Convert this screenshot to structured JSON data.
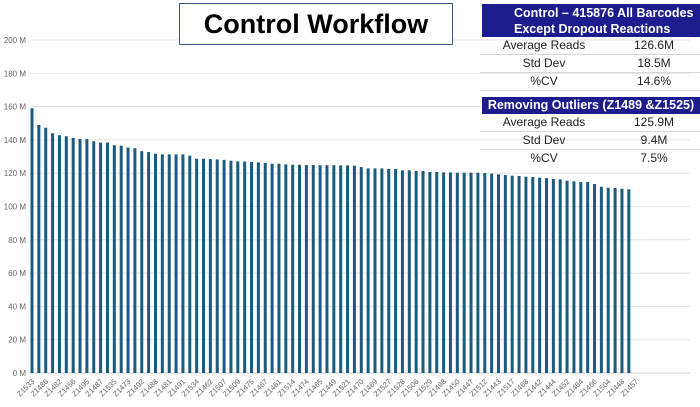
{
  "title": "Control Workflow",
  "stats_table": {
    "section1_header": [
      "Control  – 415876 All Barcodes",
      "Except Dropout Reactions"
    ],
    "section1_rows": [
      {
        "label": "Average Reads",
        "value": "126.6M"
      },
      {
        "label": "Std Dev",
        "value": "18.5M"
      },
      {
        "label": "%CV",
        "value": "14.6%"
      }
    ],
    "section2_header": "Removing Outliers (Z1489 &Z1525)",
    "section2_rows": [
      {
        "label": "Average Reads",
        "value": "125.9M"
      },
      {
        "label": "Std Dev",
        "value": "9.4M"
      },
      {
        "label": "%CV",
        "value": "7.5%"
      }
    ],
    "header_color": "#1c1c8f"
  },
  "chart_data": {
    "type": "bar",
    "title": "",
    "xlabel": "",
    "ylabel": "",
    "ylim": [
      0,
      200
    ],
    "y_ticks": [
      "0 M",
      "20 M",
      "40 M",
      "60 M",
      "80 M",
      "100 M",
      "120 M",
      "140 M",
      "160 M",
      "180 M",
      "200 M"
    ],
    "grid": true,
    "bar_color": "#1b5b80",
    "x_tick_labels": [
      "Z1533",
      "Z1486",
      "Z1482",
      "Z1456",
      "Z1495",
      "Z1487",
      "Z1535",
      "Z1473",
      "Z1492",
      "Z1488",
      "Z1481",
      "Z1491",
      "Z1534",
      "Z1462",
      "Z1507",
      "Z1509",
      "Z1475",
      "Z1467",
      "Z1461",
      "Z1514",
      "Z1474",
      "Z1465",
      "Z1449",
      "Z1521",
      "Z1470",
      "Z1469",
      "Z1527",
      "Z1528",
      "Z1506",
      "Z1529",
      "Z1498",
      "Z1450",
      "Z1447",
      "Z1512",
      "Z1443",
      "Z1517",
      "Z1468",
      "Z1442",
      "Z1444",
      "Z1452",
      "Z1464",
      "Z1466",
      "Z1504",
      "Z1448",
      "Z1457"
    ],
    "values_millions": [
      159,
      149,
      147.3,
      144,
      142.8,
      142.2,
      141.2,
      140.6,
      140.5,
      139.2,
      138.4,
      138.4,
      136.8,
      136.5,
      135.4,
      135,
      133.2,
      132.7,
      131.7,
      131.3,
      131.3,
      131.3,
      131.3,
      130.5,
      128.7,
      128.7,
      128.5,
      128.3,
      128,
      127.5,
      127.1,
      127,
      126.7,
      126.5,
      126.1,
      125.7,
      125.7,
      125.3,
      125.1,
      125.1,
      124.9,
      124.9,
      124.8,
      124.8,
      124.8,
      124.7,
      124.7,
      124.5,
      123.7,
      122.9,
      122.9,
      122.9,
      122.5,
      122.5,
      121.7,
      121.7,
      121.3,
      121.3,
      120.7,
      120.7,
      120.5,
      120.5,
      120.3,
      120.3,
      120.3,
      120.3,
      120.1,
      119.7,
      119.3,
      118.9,
      118.5,
      118.3,
      117.9,
      117.7,
      117.3,
      117,
      116.5,
      116.3,
      115.5,
      115.1,
      114.7,
      114.7,
      113.5,
      111.9,
      111.3,
      111.1,
      110.7,
      110.3,
      0
    ]
  }
}
